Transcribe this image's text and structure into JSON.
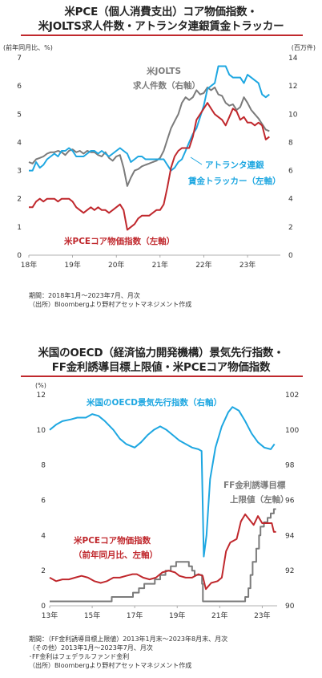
{
  "chart_data": [
    {
      "type": "line",
      "title_lines": [
        "米PCE（個人消費支出）コア物価指数・",
        "米JOLTS求人件数・アトランタ連銀賃金トラッカー"
      ],
      "y_left_label": "(前年同月比、%)",
      "y_right_label": "(百万件)",
      "ylim_left": [
        0,
        7
      ],
      "ylim_right": [
        0,
        14
      ],
      "y_left_ticks": [
        "0",
        "1",
        "2",
        "3",
        "4",
        "5",
        "6",
        "7"
      ],
      "y_right_ticks": [
        "0",
        "2",
        "4",
        "6",
        "8",
        "10",
        "12",
        "14"
      ],
      "x_ticks": [
        "18年",
        "19年",
        "20年",
        "21年",
        "22年",
        "23年"
      ],
      "x_start": "2018-01",
      "x_end": "2023-07",
      "series": [
        {
          "name": "米PCEコア物価指数（左軸）",
          "axis": "left",
          "color": "#c0282d",
          "values": [
            1.7,
            1.7,
            1.9,
            2.0,
            1.9,
            2.0,
            2.0,
            2.0,
            1.9,
            2.0,
            2.0,
            2.0,
            1.9,
            1.7,
            1.6,
            1.5,
            1.6,
            1.7,
            1.6,
            1.7,
            1.6,
            1.6,
            1.5,
            1.6,
            1.7,
            1.8,
            1.6,
            0.9,
            1.0,
            1.1,
            1.3,
            1.4,
            1.4,
            1.4,
            1.5,
            1.6,
            1.6,
            1.8,
            2.4,
            3.1,
            3.5,
            3.7,
            3.8,
            3.8,
            3.8,
            4.2,
            4.8,
            5.0,
            5.2,
            5.4,
            5.2,
            5.0,
            4.9,
            4.8,
            4.6,
            4.9,
            5.2,
            5.1,
            4.8,
            4.9,
            4.7,
            4.7,
            4.6,
            4.7,
            4.6,
            4.1,
            4.2
          ]
        },
        {
          "name": "米JOLTS求人件数（右軸）",
          "axis": "right",
          "color": "#7b7b7b",
          "values": [
            6.6,
            6.5,
            6.8,
            6.9,
            7.0,
            7.2,
            7.3,
            7.3,
            7.4,
            7.3,
            7.1,
            7.4,
            7.5,
            7.3,
            7.4,
            7.2,
            7.4,
            7.3,
            7.3,
            7.1,
            7.0,
            7.3,
            6.9,
            6.7,
            7.0,
            7.1,
            6.2,
            4.9,
            5.5,
            6.0,
            6.1,
            6.3,
            6.4,
            6.5,
            6.6,
            6.7,
            6.9,
            7.4,
            8.2,
            9.0,
            9.5,
            10.0,
            10.8,
            11.2,
            11.0,
            11.2,
            11.7,
            11.4,
            11.5,
            11.9,
            11.7,
            11.9,
            11.4,
            11.3,
            10.8,
            10.6,
            10.7,
            10.3,
            10.5,
            11.2,
            10.8,
            10.3,
            10.0,
            9.7,
            9.3,
            8.9,
            8.8
          ]
        },
        {
          "name": "アトランタ連銀賃金トラッカー（左軸）",
          "axis": "left",
          "color": "#1ea7e1",
          "values": [
            3.0,
            3.0,
            3.3,
            3.1,
            3.2,
            3.4,
            3.5,
            3.6,
            3.5,
            3.7,
            3.7,
            3.8,
            3.7,
            3.5,
            3.5,
            3.5,
            3.6,
            3.7,
            3.7,
            3.6,
            3.7,
            3.6,
            3.5,
            3.6,
            3.7,
            3.8,
            3.7,
            3.6,
            3.3,
            3.4,
            3.5,
            3.5,
            3.4,
            3.4,
            3.4,
            3.4,
            3.4,
            3.4,
            3.2,
            3.0,
            3.1,
            3.3,
            3.4,
            3.7,
            4.0,
            4.3,
            4.5,
            4.9,
            5.3,
            5.9,
            6.0,
            6.1,
            6.7,
            6.7,
            6.7,
            6.4,
            6.3,
            6.3,
            6.3,
            6.1,
            6.4,
            6.3,
            6.2,
            6.1,
            5.7,
            5.6,
            5.7
          ]
        }
      ],
      "annotations": [
        {
          "text": "米JOLTS",
          "color": "#7b7b7b"
        },
        {
          "text": "求人件数（右軸）",
          "color": "#7b7b7b"
        },
        {
          "text": "アトランタ連銀",
          "color": "#1ea7e1"
        },
        {
          "text": "賃金トラッカー（左軸）",
          "color": "#1ea7e1"
        },
        {
          "text": "米PCEコア物価指数（左軸）",
          "color": "#c0282d"
        }
      ],
      "notes": [
        "期間：2018年1月～2023年7月、月次",
        "（出所）Bloombergより野村アセットマネジメント作成"
      ]
    },
    {
      "type": "line",
      "title_lines": [
        "米国のOECD（経済協力開発機構）景気先行指数・",
        "FF金利誘導目標上限値・米PCEコア物価指数"
      ],
      "y_left_label": "(%)",
      "ylim_left": [
        0,
        12
      ],
      "ylim_right": [
        90,
        102
      ],
      "y_left_ticks": [
        "0",
        "2",
        "4",
        "6",
        "8",
        "10",
        "12"
      ],
      "y_right_ticks": [
        "90",
        "92",
        "94",
        "96",
        "98",
        "100",
        "102"
      ],
      "x_ticks": [
        "13年",
        "15年",
        "17年",
        "19年",
        "21年",
        "23年"
      ],
      "x_start": "2013-01",
      "x_end": "2023-08",
      "series": [
        {
          "name": "米国のOECD景気先行指数（右軸）",
          "axis": "right",
          "color": "#1ea7e1",
          "points": [
            [
              2013.0,
              100.0
            ],
            [
              2013.3,
              100.3
            ],
            [
              2013.6,
              100.5
            ],
            [
              2014.0,
              100.6
            ],
            [
              2014.3,
              100.7
            ],
            [
              2014.7,
              100.7
            ],
            [
              2015.0,
              100.9
            ],
            [
              2015.3,
              100.8
            ],
            [
              2015.6,
              100.5
            ],
            [
              2016.0,
              100.0
            ],
            [
              2016.3,
              99.5
            ],
            [
              2016.6,
              99.2
            ],
            [
              2017.0,
              99.0
            ],
            [
              2017.3,
              99.3
            ],
            [
              2017.6,
              99.7
            ],
            [
              2017.9,
              100.0
            ],
            [
              2018.2,
              100.2
            ],
            [
              2018.5,
              100.0
            ],
            [
              2018.8,
              99.7
            ],
            [
              2019.1,
              99.4
            ],
            [
              2019.4,
              99.2
            ],
            [
              2019.7,
              99.0
            ],
            [
              2020.0,
              98.9
            ],
            [
              2020.15,
              98.8
            ],
            [
              2020.25,
              92.8
            ],
            [
              2020.38,
              94.0
            ],
            [
              2020.55,
              97.2
            ],
            [
              2020.8,
              99.0
            ],
            [
              2021.1,
              100.2
            ],
            [
              2021.4,
              101.0
            ],
            [
              2021.6,
              101.3
            ],
            [
              2021.9,
              101.1
            ],
            [
              2022.2,
              100.5
            ],
            [
              2022.5,
              99.8
            ],
            [
              2022.8,
              99.3
            ],
            [
              2023.1,
              99.0
            ],
            [
              2023.4,
              98.9
            ],
            [
              2023.58,
              99.2
            ]
          ]
        },
        {
          "name": "FF金利誘導目標上限値（左軸）",
          "axis": "left",
          "color": "#7b7b7b",
          "points": [
            [
              2013.0,
              0.25
            ],
            [
              2015.92,
              0.25
            ],
            [
              2015.92,
              0.5
            ],
            [
              2016.92,
              0.5
            ],
            [
              2016.92,
              0.75
            ],
            [
              2017.2,
              0.75
            ],
            [
              2017.2,
              1.0
            ],
            [
              2017.45,
              1.0
            ],
            [
              2017.45,
              1.25
            ],
            [
              2017.95,
              1.25
            ],
            [
              2017.95,
              1.5
            ],
            [
              2018.2,
              1.5
            ],
            [
              2018.2,
              1.75
            ],
            [
              2018.45,
              1.75
            ],
            [
              2018.45,
              2.0
            ],
            [
              2018.7,
              2.0
            ],
            [
              2018.7,
              2.25
            ],
            [
              2018.95,
              2.25
            ],
            [
              2018.95,
              2.5
            ],
            [
              2019.55,
              2.5
            ],
            [
              2019.55,
              2.25
            ],
            [
              2019.7,
              2.25
            ],
            [
              2019.7,
              2.0
            ],
            [
              2019.82,
              2.0
            ],
            [
              2019.82,
              1.75
            ],
            [
              2020.17,
              1.75
            ],
            [
              2020.17,
              1.25
            ],
            [
              2020.21,
              1.25
            ],
            [
              2020.21,
              0.25
            ],
            [
              2022.2,
              0.25
            ],
            [
              2022.2,
              0.5
            ],
            [
              2022.35,
              0.5
            ],
            [
              2022.35,
              1.0
            ],
            [
              2022.45,
              1.0
            ],
            [
              2022.45,
              1.75
            ],
            [
              2022.55,
              1.75
            ],
            [
              2022.55,
              2.5
            ],
            [
              2022.72,
              2.5
            ],
            [
              2022.72,
              3.25
            ],
            [
              2022.85,
              3.25
            ],
            [
              2022.85,
              4.0
            ],
            [
              2022.92,
              4.0
            ],
            [
              2022.92,
              4.5
            ],
            [
              2023.08,
              4.5
            ],
            [
              2023.08,
              4.75
            ],
            [
              2023.25,
              4.75
            ],
            [
              2023.25,
              5.0
            ],
            [
              2023.4,
              5.0
            ],
            [
              2023.4,
              5.25
            ],
            [
              2023.55,
              5.25
            ],
            [
              2023.55,
              5.5
            ],
            [
              2023.65,
              5.5
            ]
          ]
        },
        {
          "name": "米PCEコア物価指数（前年同月比、左軸）",
          "axis": "left",
          "color": "#c0282d",
          "points": [
            [
              2013.0,
              1.6
            ],
            [
              2013.3,
              1.4
            ],
            [
              2013.6,
              1.5
            ],
            [
              2013.9,
              1.5
            ],
            [
              2014.2,
              1.6
            ],
            [
              2014.5,
              1.7
            ],
            [
              2014.8,
              1.6
            ],
            [
              2015.1,
              1.4
            ],
            [
              2015.4,
              1.3
            ],
            [
              2015.7,
              1.4
            ],
            [
              2016.0,
              1.6
            ],
            [
              2016.3,
              1.6
            ],
            [
              2016.6,
              1.7
            ],
            [
              2016.9,
              1.8
            ],
            [
              2017.1,
              1.8
            ],
            [
              2017.4,
              1.6
            ],
            [
              2017.7,
              1.5
            ],
            [
              2018.0,
              1.6
            ],
            [
              2018.3,
              1.9
            ],
            [
              2018.6,
              2.0
            ],
            [
              2018.9,
              1.9
            ],
            [
              2019.1,
              1.7
            ],
            [
              2019.4,
              1.6
            ],
            [
              2019.7,
              1.6
            ],
            [
              2020.0,
              1.8
            ],
            [
              2020.2,
              1.7
            ],
            [
              2020.35,
              0.95
            ],
            [
              2020.6,
              1.3
            ],
            [
              2020.9,
              1.4
            ],
            [
              2021.1,
              1.6
            ],
            [
              2021.3,
              3.1
            ],
            [
              2021.5,
              3.6
            ],
            [
              2021.8,
              3.8
            ],
            [
              2022.0,
              4.8
            ],
            [
              2022.2,
              5.2
            ],
            [
              2022.4,
              4.9
            ],
            [
              2022.6,
              4.6
            ],
            [
              2022.8,
              5.1
            ],
            [
              2023.0,
              4.7
            ],
            [
              2023.2,
              4.7
            ],
            [
              2023.45,
              4.7
            ],
            [
              2023.55,
              4.2
            ],
            [
              2023.65,
              4.2
            ]
          ]
        }
      ],
      "annotations": [
        {
          "text": "米国のOECD景気先行指数（右軸）",
          "color": "#1ea7e1"
        },
        {
          "text": "FF金利誘導目標",
          "color": "#7b7b7b"
        },
        {
          "text": "上限値（左軸）",
          "color": "#7b7b7b"
        },
        {
          "text": "米PCEコア物価指数",
          "color": "#c0282d"
        },
        {
          "text": "（前年同月比、左軸）",
          "color": "#c0282d"
        }
      ],
      "notes": [
        "期間：（FF金利誘導目標上限値）2013年1月末～2023年8月末、月次",
        "（その他）2013年1月～2023年7月、月次",
        "･FF金利はフェデラルファンド金利",
        "（出所）Bloombergより野村アセットマネジメント作成"
      ]
    }
  ]
}
